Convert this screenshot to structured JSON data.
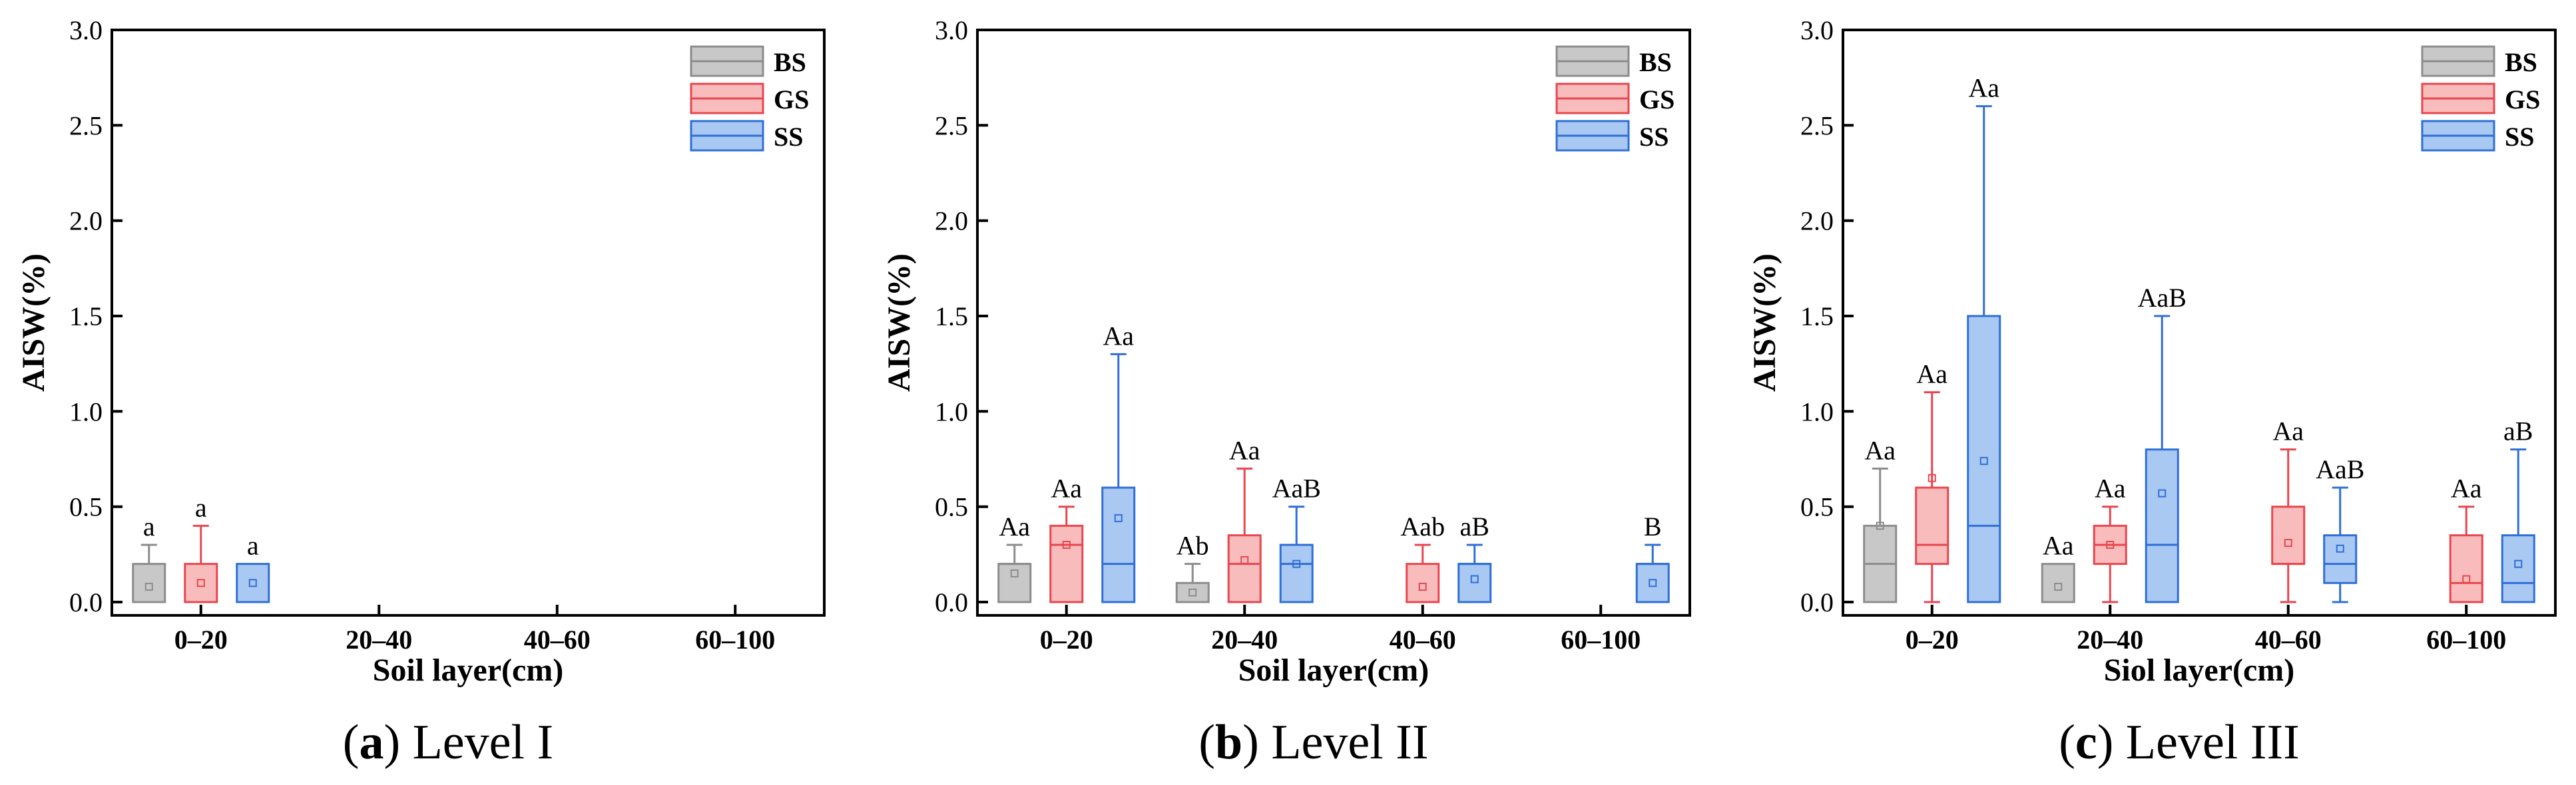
{
  "chart_data": [
    {
      "type": "box",
      "caption_prefix": "(a)",
      "caption_name": "Level I",
      "ylabel": "AISW(%)",
      "xlabel": "Soil layer(cm)",
      "ylim": [
        0,
        3.0
      ],
      "yticks": [
        "0.0",
        "0.5",
        "1.0",
        "1.5",
        "2.0",
        "2.5",
        "3.0"
      ],
      "categories": [
        "0–20",
        "20–40",
        "40–60",
        "60–100"
      ],
      "legend": [
        {
          "name": "BS",
          "color": "#8c8c8c",
          "fill": "#c8c8c8"
        },
        {
          "name": "GS",
          "color": "#e8464f",
          "fill": "#f9bcbc"
        },
        {
          "name": "SS",
          "color": "#2f6fd6",
          "fill": "#a9c8f2"
        }
      ],
      "boxes": [
        {
          "series": "BS",
          "category": "0–20",
          "min": 0,
          "q1": 0,
          "median": 0,
          "q3": 0.2,
          "max": 0.3,
          "mean": 0.08,
          "label": "a"
        },
        {
          "series": "GS",
          "category": "0–20",
          "min": 0,
          "q1": 0,
          "median": 0,
          "q3": 0.2,
          "max": 0.4,
          "mean": 0.1,
          "label": "a"
        },
        {
          "series": "SS",
          "category": "0–20",
          "min": 0,
          "q1": 0,
          "median": 0,
          "q3": 0.2,
          "max": 0.2,
          "mean": 0.1,
          "label": "a"
        }
      ]
    },
    {
      "type": "box",
      "caption_prefix": "(b)",
      "caption_name": "Level II",
      "ylabel": "AISW(%)",
      "xlabel": "Soil layer(cm)",
      "ylim": [
        0,
        3.0
      ],
      "yticks": [
        "0.0",
        "0.5",
        "1.0",
        "1.5",
        "2.0",
        "2.5",
        "3.0"
      ],
      "categories": [
        "0–20",
        "20–40",
        "40–60",
        "60–100"
      ],
      "legend": [
        {
          "name": "BS",
          "color": "#8c8c8c",
          "fill": "#c8c8c8"
        },
        {
          "name": "GS",
          "color": "#e8464f",
          "fill": "#f9bcbc"
        },
        {
          "name": "SS",
          "color": "#2f6fd6",
          "fill": "#a9c8f2"
        }
      ],
      "boxes": [
        {
          "series": "BS",
          "category": "0–20",
          "min": 0,
          "q1": 0,
          "median": 0.2,
          "q3": 0.2,
          "max": 0.3,
          "mean": 0.15,
          "label": "Aa"
        },
        {
          "series": "GS",
          "category": "0–20",
          "min": 0,
          "q1": 0,
          "median": 0.3,
          "q3": 0.4,
          "max": 0.5,
          "mean": 0.3,
          "label": "Aa"
        },
        {
          "series": "SS",
          "category": "0–20",
          "min": 0,
          "q1": 0,
          "median": 0.2,
          "q3": 0.6,
          "max": 1.3,
          "mean": 0.44,
          "label": "Aa"
        },
        {
          "series": "BS",
          "category": "20–40",
          "min": 0,
          "q1": 0,
          "median": 0,
          "q3": 0.1,
          "max": 0.2,
          "mean": 0.05,
          "label": "Ab"
        },
        {
          "series": "GS",
          "category": "20–40",
          "min": 0,
          "q1": 0,
          "median": 0.2,
          "q3": 0.35,
          "max": 0.7,
          "mean": 0.22,
          "label": "Aa"
        },
        {
          "series": "SS",
          "category": "20–40",
          "min": 0,
          "q1": 0,
          "median": 0.2,
          "q3": 0.3,
          "max": 0.5,
          "mean": 0.2,
          "label": "AaB"
        },
        {
          "series": "GS",
          "category": "40–60",
          "min": 0,
          "q1": 0,
          "median": 0,
          "q3": 0.2,
          "max": 0.3,
          "mean": 0.08,
          "label": "Aab"
        },
        {
          "series": "SS",
          "category": "40–60",
          "min": 0,
          "q1": 0,
          "median": 0.2,
          "q3": 0.2,
          "max": 0.3,
          "mean": 0.12,
          "label": "aB"
        },
        {
          "series": "SS",
          "category": "60–100",
          "min": 0,
          "q1": 0,
          "median": 0.2,
          "q3": 0.2,
          "max": 0.3,
          "mean": 0.1,
          "label": "B"
        }
      ]
    },
    {
      "type": "box",
      "caption_prefix": "(c)",
      "caption_name": "Level III",
      "ylabel": "AISW(%)",
      "xlabel": "Siol layer(cm)",
      "ylim": [
        0,
        3.0
      ],
      "yticks": [
        "0.0",
        "0.5",
        "1.0",
        "1.5",
        "2.0",
        "2.5",
        "3.0"
      ],
      "categories": [
        "0–20",
        "20–40",
        "40–60",
        "60–100"
      ],
      "legend": [
        {
          "name": "BS",
          "color": "#8c8c8c",
          "fill": "#c8c8c8"
        },
        {
          "name": "GS",
          "color": "#e8464f",
          "fill": "#f9bcbc"
        },
        {
          "name": "SS",
          "color": "#2f6fd6",
          "fill": "#a9c8f2"
        }
      ],
      "boxes": [
        {
          "series": "BS",
          "category": "0–20",
          "min": 0,
          "q1": 0,
          "median": 0.2,
          "q3": 0.4,
          "max": 0.7,
          "mean": 0.4,
          "label": "Aa"
        },
        {
          "series": "GS",
          "category": "0–20",
          "min": 0,
          "q1": 0.2,
          "median": 0.3,
          "q3": 0.6,
          "max": 1.1,
          "mean": 0.65,
          "label": "Aa"
        },
        {
          "series": "SS",
          "category": "0–20",
          "min": 0,
          "q1": 0,
          "median": 0.4,
          "q3": 1.5,
          "max": 2.6,
          "mean": 0.74,
          "label": "Aa"
        },
        {
          "series": "BS",
          "category": "20–40",
          "min": 0,
          "q1": 0,
          "median": 0,
          "q3": 0.2,
          "max": 0.2,
          "mean": 0.08,
          "label": "Aa"
        },
        {
          "series": "GS",
          "category": "20–40",
          "min": 0,
          "q1": 0.2,
          "median": 0.3,
          "q3": 0.4,
          "max": 0.5,
          "mean": 0.3,
          "label": "Aa"
        },
        {
          "series": "SS",
          "category": "20–40",
          "min": 0,
          "q1": 0,
          "median": 0.3,
          "q3": 0.8,
          "max": 1.5,
          "mean": 0.57,
          "label": "AaB"
        },
        {
          "series": "GS",
          "category": "40–60",
          "min": 0,
          "q1": 0.2,
          "median": 0.2,
          "q3": 0.5,
          "max": 0.8,
          "mean": 0.31,
          "label": "Aa"
        },
        {
          "series": "SS",
          "category": "40–60",
          "min": 0,
          "q1": 0.1,
          "median": 0.2,
          "q3": 0.35,
          "max": 0.6,
          "mean": 0.28,
          "label": "AaB"
        },
        {
          "series": "GS",
          "category": "60–100",
          "min": 0,
          "q1": 0,
          "median": 0.1,
          "q3": 0.35,
          "max": 0.5,
          "mean": 0.12,
          "label": "Aa"
        },
        {
          "series": "SS",
          "category": "60–100",
          "min": 0,
          "q1": 0,
          "median": 0.1,
          "q3": 0.35,
          "max": 0.8,
          "mean": 0.2,
          "label": "aB"
        }
      ]
    }
  ]
}
